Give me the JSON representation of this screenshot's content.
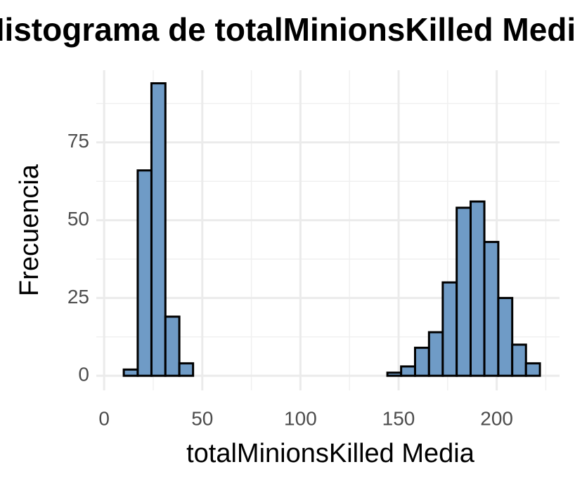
{
  "chart_data": {
    "type": "histogram",
    "title": "Histograma de totalMinionsKilled Media",
    "x_label": "totalMinionsKilled Media",
    "y_label": "Frecuencia",
    "bins": [
      10.0,
      17.1,
      24.1,
      31.2,
      38.3,
      45.3,
      52.4,
      59.5,
      66.5,
      73.6,
      80.7,
      87.7,
      94.8,
      101.9,
      108.9,
      116.0,
      123.1,
      130.1,
      137.2,
      144.3,
      151.3,
      158.4,
      165.5,
      172.5,
      179.6,
      186.7,
      193.7,
      200.8,
      207.9,
      214.9,
      222.0
    ],
    "values": [
      2,
      66,
      94,
      19,
      4,
      0,
      0,
      0,
      0,
      0,
      0,
      0,
      0,
      0,
      0,
      0,
      0,
      0,
      0,
      1,
      3,
      9,
      14,
      30,
      54,
      56,
      43,
      25,
      10,
      4
    ],
    "color": "#6f9bc6",
    "edge_color": "#000000",
    "xlim": [
      -4,
      232
    ],
    "ylim": [
      -4.7,
      98.2
    ],
    "xticks": [
      0,
      50,
      100,
      150,
      200
    ],
    "yticks": [
      0,
      25,
      50,
      75
    ],
    "x_minor_ticks": [
      25,
      75,
      125,
      175,
      225
    ],
    "y_minor_ticks": [
      12.5,
      37.5,
      62.5,
      87.5
    ],
    "grid": true
  }
}
